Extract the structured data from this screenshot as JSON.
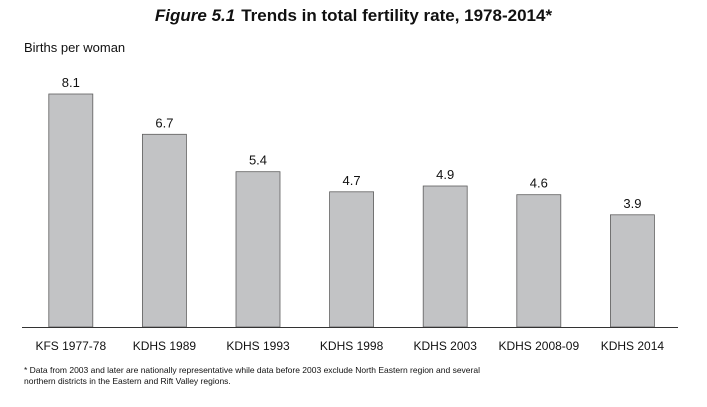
{
  "title": {
    "figure": "Figure 5.1",
    "text": "Trends in total fertility rate, 1978-2014*"
  },
  "footnote": "* Data from 2003 and later are nationally representative while data before 2003 exclude North Eastern region and several northern districts in the Eastern and Rift Valley regions.",
  "colors": {
    "bar": "#c2c3c5",
    "bar_stroke": "#5e5e5e",
    "axis": "#333333"
  },
  "chart_data": {
    "type": "bar",
    "ylabel": "Births per woman",
    "xlabel": "",
    "categories": [
      "KFS 1977-78",
      "KDHS 1989",
      "KDHS 1993",
      "KDHS 1998",
      "KDHS 2003",
      "KDHS 2008-09",
      "KDHS 2014"
    ],
    "values": [
      8.1,
      6.7,
      5.4,
      4.7,
      4.9,
      4.6,
      3.9
    ],
    "value_labels": [
      "8.1",
      "6.7",
      "5.4",
      "4.7",
      "4.9",
      "4.6",
      "3.9"
    ],
    "ylim": [
      0,
      8.1
    ],
    "grid": false,
    "legend": "none"
  }
}
